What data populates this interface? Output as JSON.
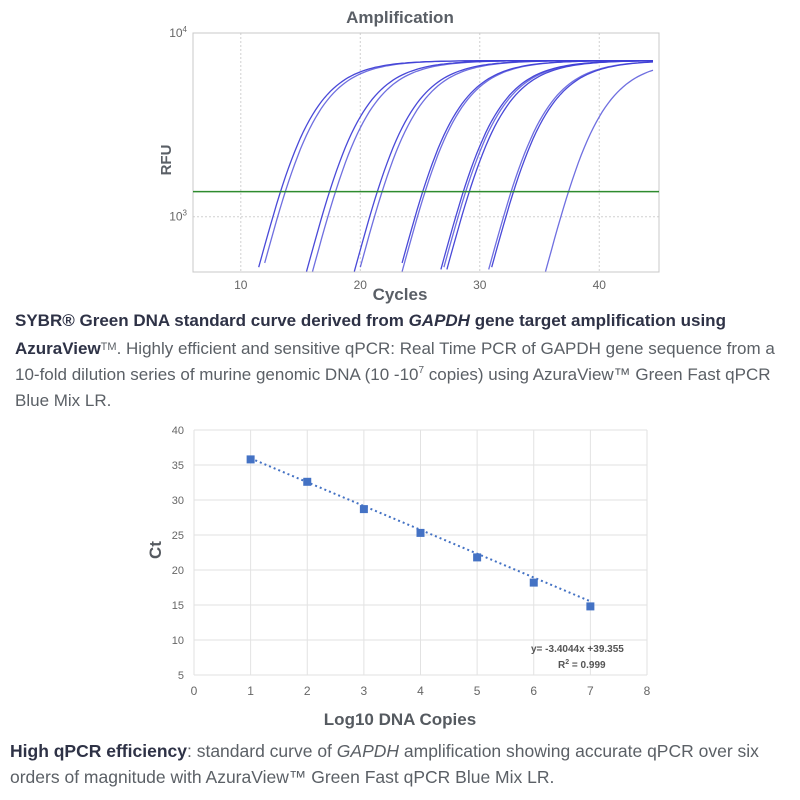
{
  "chart_data": [
    {
      "type": "line",
      "title": "Amplification",
      "xlabel": "Cycles",
      "ylabel": "RFU",
      "x_ticks": [
        10,
        20,
        30,
        40
      ],
      "y_ticks": [
        {
          "value": 1000,
          "base": "10",
          "exp": "3"
        },
        {
          "value": 10000,
          "base": "10",
          "exp": "4"
        }
      ],
      "xlim": [
        6,
        45
      ],
      "ylim": [
        500,
        10000
      ],
      "y_scale": "log",
      "grid": true,
      "threshold": 1370,
      "threshold_color": "#2e8b2e",
      "line_color": "#3f3fd6",
      "curve_midpoints": [
        11.5,
        11.9,
        15.6,
        16.1,
        19.6,
        20.0,
        23.4,
        23.6,
        26.8,
        27.0,
        27.3,
        30.8,
        31.0,
        35.6
      ]
    },
    {
      "type": "scatter",
      "xlabel": "Log10 DNA Copies",
      "ylabel": "Ct",
      "x_ticks": [
        0,
        1,
        2,
        3,
        4,
        5,
        6,
        7,
        8
      ],
      "y_ticks": [
        5,
        10,
        15,
        20,
        25,
        30,
        35,
        40
      ],
      "xlim": [
        0,
        8
      ],
      "ylim": [
        5,
        40
      ],
      "grid": true,
      "points": [
        {
          "x": 1,
          "y": 35.8
        },
        {
          "x": 2,
          "y": 32.6
        },
        {
          "x": 3,
          "y": 28.7
        },
        {
          "x": 4,
          "y": 25.3
        },
        {
          "x": 5,
          "y": 21.8
        },
        {
          "x": 6,
          "y": 18.2
        },
        {
          "x": 7,
          "y": 14.8
        }
      ],
      "point_color": "#4472c4",
      "trendline": {
        "slope": -3.4044,
        "intercept": 39.355
      },
      "equation_label": "y= -3.4044x +39.355",
      "r2_label": "R",
      "r2_exp": "2",
      "r2_value": " = 0.999"
    }
  ],
  "caption1": {
    "bold_a": "SYBR® Green DNA standard curve derived from ",
    "bold_italic": "GAPDH",
    "bold_b": " gene target amplification using AzuraView",
    "tm_a": "TM",
    "text_a": ". Highly efficient and sensitive qPCR: Real Time PCR of GAPDH gene sequence from a 10-fold dilution series of murine genomic DNA (10 -10",
    "sup": "7",
    "text_b": " copies) using AzuraView™ Green Fast qPCR Blue Mix LR."
  },
  "caption2": {
    "bold": "High qPCR efficiency",
    "text_a": ": standard curve of ",
    "italic": "GAPDH",
    "text_b": " amplification showing accurate qPCR over six orders of magnitude with AzuraView™ Green Fast qPCR Blue Mix LR."
  }
}
